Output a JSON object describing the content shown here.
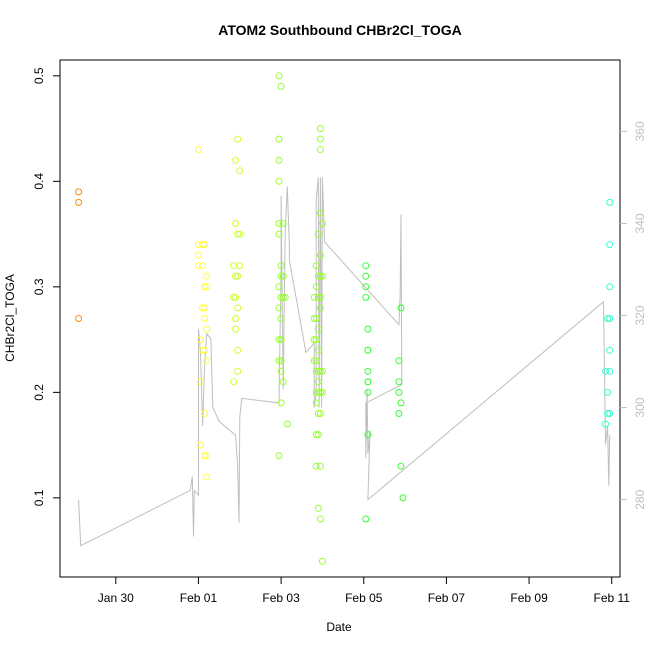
{
  "chart_data": {
    "type": "scatter",
    "title": "ATOM2 Southbound CHBr2Cl_TOGA",
    "xlabel": "Date",
    "ylabel": "CHBr2Cl_TOGA",
    "x_tick_labels": [
      "Jan 30",
      "Feb 01",
      "Feb 03",
      "Feb 05",
      "Feb 07",
      "Feb 09",
      "Feb 11"
    ],
    "x_tick_days": [
      30,
      32,
      34,
      36,
      38,
      40,
      42
    ],
    "xlim_days": [
      28.65,
      42.2
    ],
    "y_ticks": [
      0.1,
      0.2,
      0.3,
      0.4,
      0.5
    ],
    "y_tick_labels": [
      "0.1",
      "0.2",
      "0.3",
      "0.4",
      "0.5"
    ],
    "ylim": [
      0.025,
      0.515
    ],
    "y2_ticks": [
      280,
      300,
      320,
      340,
      360
    ],
    "y2_tick_labels": [
      "280",
      "300",
      "320",
      "340",
      "360"
    ],
    "y2lim": [
      263.2,
      375.5
    ],
    "grid": false,
    "colors": {
      "orange": "#ff8c00",
      "yellow": "#ffff33",
      "yellowgreen": "#ccff33",
      "lime": "#99ff33",
      "green": "#33ff33",
      "cyan": "#33ffcc",
      "secondary_line": "#bfbfbf"
    },
    "series": [
      {
        "color": "orange",
        "points": [
          [
            29.1,
            0.39
          ],
          [
            29.1,
            0.38
          ],
          [
            29.1,
            0.27
          ]
        ]
      },
      {
        "color": "yellow",
        "points": [
          [
            32.0,
            0.43
          ],
          [
            32.0,
            0.34
          ],
          [
            32.0,
            0.33
          ],
          [
            32.0,
            0.32
          ],
          [
            32.05,
            0.25
          ],
          [
            32.05,
            0.21
          ],
          [
            32.05,
            0.15
          ],
          [
            32.1,
            0.34
          ],
          [
            32.1,
            0.32
          ],
          [
            32.1,
            0.28
          ],
          [
            32.1,
            0.24
          ],
          [
            32.15,
            0.34
          ],
          [
            32.15,
            0.3
          ],
          [
            32.15,
            0.28
          ],
          [
            32.15,
            0.27
          ],
          [
            32.15,
            0.24
          ],
          [
            32.15,
            0.18
          ],
          [
            32.15,
            0.14
          ],
          [
            32.2,
            0.31
          ],
          [
            32.2,
            0.3
          ],
          [
            32.2,
            0.26
          ],
          [
            32.2,
            0.23
          ],
          [
            32.2,
            0.14
          ],
          [
            32.2,
            0.12
          ]
        ]
      },
      {
        "color": "yellowgreen",
        "points": [
          [
            32.85,
            0.32
          ],
          [
            32.85,
            0.29
          ],
          [
            32.85,
            0.21
          ],
          [
            32.9,
            0.42
          ],
          [
            32.9,
            0.36
          ],
          [
            32.9,
            0.31
          ],
          [
            32.9,
            0.29
          ],
          [
            32.9,
            0.27
          ],
          [
            32.9,
            0.26
          ],
          [
            32.95,
            0.44
          ],
          [
            32.95,
            0.35
          ],
          [
            32.95,
            0.31
          ],
          [
            32.95,
            0.28
          ],
          [
            32.95,
            0.24
          ],
          [
            32.95,
            0.22
          ],
          [
            33.0,
            0.41
          ],
          [
            33.0,
            0.35
          ],
          [
            33.0,
            0.32
          ]
        ]
      },
      {
        "color": "lime",
        "points": [
          [
            33.95,
            0.5
          ],
          [
            33.95,
            0.44
          ],
          [
            33.95,
            0.42
          ],
          [
            33.95,
            0.4
          ],
          [
            33.95,
            0.36
          ],
          [
            33.95,
            0.35
          ],
          [
            33.95,
            0.3
          ],
          [
            33.95,
            0.28
          ],
          [
            33.95,
            0.25
          ],
          [
            33.95,
            0.23
          ],
          [
            33.95,
            0.14
          ],
          [
            34.0,
            0.49
          ],
          [
            34.0,
            0.32
          ],
          [
            34.0,
            0.31
          ],
          [
            34.0,
            0.29
          ],
          [
            34.0,
            0.27
          ],
          [
            34.0,
            0.25
          ],
          [
            34.0,
            0.23
          ],
          [
            34.0,
            0.22
          ],
          [
            34.0,
            0.19
          ],
          [
            34.05,
            0.36
          ],
          [
            34.05,
            0.31
          ],
          [
            34.05,
            0.29
          ],
          [
            34.05,
            0.21
          ],
          [
            34.1,
            0.29
          ],
          [
            34.15,
            0.17
          ],
          [
            34.8,
            0.29
          ],
          [
            34.8,
            0.27
          ],
          [
            34.8,
            0.25
          ],
          [
            34.8,
            0.23
          ],
          [
            34.85,
            0.32
          ],
          [
            34.85,
            0.3
          ],
          [
            34.85,
            0.27
          ],
          [
            34.85,
            0.25
          ],
          [
            34.85,
            0.23
          ],
          [
            34.85,
            0.22
          ],
          [
            34.85,
            0.2
          ],
          [
            34.85,
            0.19
          ],
          [
            34.85,
            0.16
          ],
          [
            34.85,
            0.13
          ],
          [
            34.9,
            0.35
          ],
          [
            34.9,
            0.31
          ],
          [
            34.9,
            0.29
          ],
          [
            34.9,
            0.26
          ],
          [
            34.9,
            0.24
          ],
          [
            34.9,
            0.22
          ],
          [
            34.9,
            0.21
          ],
          [
            34.9,
            0.2
          ],
          [
            34.9,
            0.18
          ],
          [
            34.9,
            0.16
          ],
          [
            34.9,
            0.09
          ],
          [
            34.95,
            0.45
          ],
          [
            34.95,
            0.44
          ],
          [
            34.95,
            0.43
          ],
          [
            34.95,
            0.37
          ],
          [
            34.95,
            0.33
          ],
          [
            34.95,
            0.31
          ],
          [
            34.95,
            0.29
          ],
          [
            34.95,
            0.28
          ],
          [
            34.95,
            0.22
          ],
          [
            34.95,
            0.2
          ],
          [
            34.95,
            0.18
          ],
          [
            34.95,
            0.13
          ],
          [
            34.95,
            0.08
          ],
          [
            35.0,
            0.36
          ],
          [
            35.0,
            0.31
          ],
          [
            35.0,
            0.22
          ],
          [
            35.0,
            0.2
          ],
          [
            35.0,
            0.04
          ]
        ]
      },
      {
        "color": "green",
        "points": [
          [
            36.05,
            0.32
          ],
          [
            36.05,
            0.31
          ],
          [
            36.05,
            0.3
          ],
          [
            36.05,
            0.29
          ],
          [
            36.05,
            0.08
          ],
          [
            36.1,
            0.26
          ],
          [
            36.1,
            0.24
          ],
          [
            36.1,
            0.22
          ],
          [
            36.1,
            0.21
          ],
          [
            36.1,
            0.2
          ],
          [
            36.1,
            0.16
          ],
          [
            36.1,
            0.24
          ],
          [
            36.1,
            0.21
          ],
          [
            36.85,
            0.23
          ],
          [
            36.85,
            0.21
          ],
          [
            36.85,
            0.2
          ],
          [
            36.85,
            0.18
          ],
          [
            36.9,
            0.28
          ],
          [
            36.9,
            0.19
          ],
          [
            36.9,
            0.13
          ],
          [
            36.95,
            0.1
          ]
        ]
      },
      {
        "color": "cyan",
        "points": [
          [
            41.85,
            0.22
          ],
          [
            41.85,
            0.17
          ],
          [
            41.9,
            0.27
          ],
          [
            41.9,
            0.2
          ],
          [
            41.9,
            0.18
          ],
          [
            41.95,
            0.38
          ],
          [
            41.95,
            0.34
          ],
          [
            41.95,
            0.3
          ],
          [
            41.95,
            0.27
          ],
          [
            41.95,
            0.24
          ],
          [
            41.95,
            0.22
          ],
          [
            41.95,
            0.18
          ]
        ]
      }
    ],
    "secondary_series": {
      "color": "secondary_line",
      "points": [
        [
          29.1,
          280
        ],
        [
          29.15,
          270
        ],
        [
          31.8,
          282
        ],
        [
          31.85,
          285
        ],
        [
          31.88,
          272
        ],
        [
          31.9,
          282
        ],
        [
          32.0,
          281
        ],
        [
          32.0,
          317
        ],
        [
          32.05,
          312
        ],
        [
          32.1,
          296
        ],
        [
          32.15,
          309
        ],
        [
          32.2,
          316
        ],
        [
          32.3,
          315
        ],
        [
          32.35,
          300
        ],
        [
          32.5,
          297
        ],
        [
          32.9,
          294
        ],
        [
          32.95,
          287
        ],
        [
          32.98,
          275
        ],
        [
          33.0,
          298
        ],
        [
          33.05,
          302
        ],
        [
          33.95,
          301
        ],
        [
          34.0,
          330
        ],
        [
          34.0,
          346
        ],
        [
          34.05,
          304
        ],
        [
          34.1,
          338
        ],
        [
          34.15,
          348
        ],
        [
          34.2,
          335
        ],
        [
          34.2,
          332
        ],
        [
          34.6,
          312
        ],
        [
          34.8,
          314
        ],
        [
          34.8,
          300
        ],
        [
          34.85,
          303
        ],
        [
          34.85,
          345
        ],
        [
          34.9,
          350
        ],
        [
          34.92,
          300
        ],
        [
          34.95,
          350
        ],
        [
          34.98,
          300
        ],
        [
          35.0,
          350
        ],
        [
          35.05,
          336
        ],
        [
          36.85,
          318
        ],
        [
          36.88,
          324
        ],
        [
          36.9,
          342
        ],
        [
          36.92,
          305
        ],
        [
          36.05,
          301
        ],
        [
          36.05,
          289
        ],
        [
          36.08,
          304
        ],
        [
          36.1,
          290
        ],
        [
          36.15,
          295
        ],
        [
          36.1,
          280
        ],
        [
          41.8,
          323
        ],
        [
          41.85,
          292
        ],
        [
          41.9,
          296
        ],
        [
          41.93,
          283
        ],
        [
          41.95,
          294
        ]
      ]
    }
  }
}
